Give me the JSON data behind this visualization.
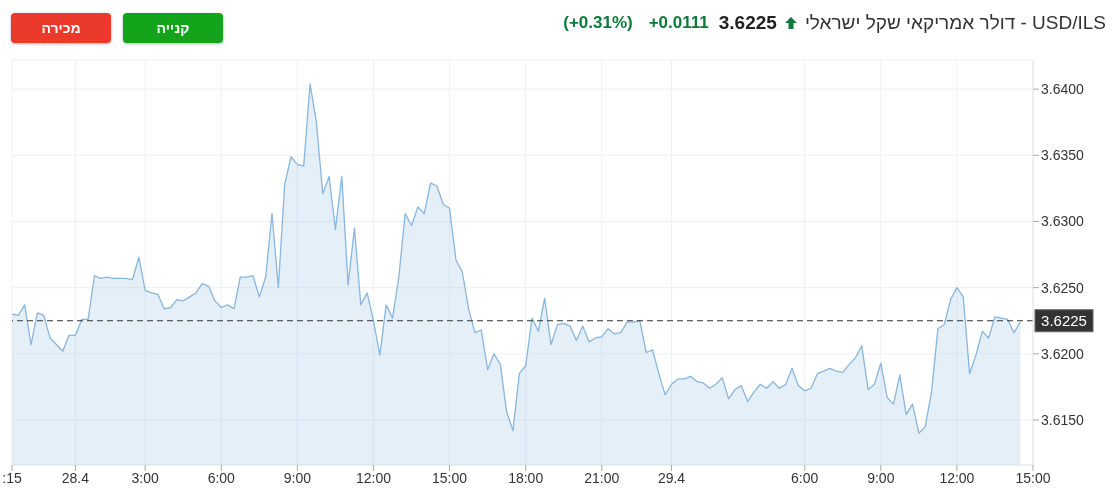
{
  "chart_data": {
    "type": "area",
    "title": "USD/ILS - דולר אמריקאי שקל ישראלי",
    "subtitle": "3.6225",
    "annotations": [
      "+0.0111",
      "(+0.31%)",
      "קנייה",
      "מכירה"
    ],
    "categories": [
      ":15",
      null,
      null,
      null,
      null,
      null,
      null,
      null,
      null,
      null,
      "28.4",
      null,
      null,
      null,
      null,
      null,
      null,
      null,
      null,
      null,
      null,
      "3:00",
      null,
      null,
      null,
      null,
      null,
      null,
      null,
      null,
      null,
      null,
      null,
      "6:00",
      null,
      null,
      null,
      null,
      null,
      null,
      null,
      null,
      null,
      null,
      null,
      "9:00",
      null,
      null,
      null,
      null,
      null,
      null,
      null,
      null,
      null,
      null,
      null,
      "12:00",
      null,
      null,
      null,
      null,
      null,
      null,
      null,
      null,
      null,
      null,
      null,
      "15:00",
      null,
      null,
      null,
      null,
      null,
      null,
      null,
      null,
      null,
      null,
      null,
      "18:00",
      null,
      null,
      null,
      null,
      null,
      null,
      null,
      null,
      null,
      null,
      null,
      "21:00",
      null,
      null,
      null,
      null,
      null,
      null,
      null,
      null,
      null,
      null,
      "29.4",
      null,
      null,
      null,
      null,
      null,
      null,
      null,
      null,
      null,
      null,
      null,
      null,
      null,
      null,
      null,
      null,
      null,
      null,
      null,
      null,
      "6:00",
      null,
      null,
      null,
      null,
      null,
      null,
      null,
      null,
      null,
      null,
      null,
      "9:00",
      null,
      null,
      null,
      null,
      null,
      null,
      null,
      null,
      null,
      null,
      null,
      "12:00",
      null,
      null,
      null,
      null,
      null,
      null,
      null,
      null,
      null,
      null,
      null,
      "15:00"
    ],
    "series": [
      {
        "color": "#88b6dd",
        "values": [
          3.623,
          3.6229,
          3.6237,
          3.6207,
          3.6231,
          3.6229,
          3.6212,
          3.6207,
          3.6202,
          3.6214,
          3.6214,
          3.6226,
          3.6226,
          3.6259,
          3.6257,
          3.6258,
          3.6257,
          3.6257,
          3.6257,
          3.6256,
          3.6273,
          3.6248,
          3.6246,
          3.6245,
          3.6234,
          3.6235,
          3.6241,
          3.624,
          3.6243,
          3.6246,
          3.6253,
          3.6251,
          3.624,
          3.6235,
          3.6237,
          3.6234,
          3.6258,
          3.6258,
          3.6259,
          3.6243,
          3.6258,
          3.6306,
          3.625,
          3.6328,
          3.6349,
          3.6343,
          3.6342,
          3.6404,
          3.6375,
          3.6321,
          3.6334,
          3.6294,
          3.6334,
          3.6252,
          3.6295,
          3.6237,
          3.6246,
          3.6225,
          3.6199,
          3.6237,
          3.6227,
          3.6258,
          3.6306,
          3.6297,
          3.6311,
          3.6306,
          3.6329,
          3.6327,
          3.6313,
          3.631,
          3.6271,
          3.6262,
          3.6234,
          3.6216,
          3.6218,
          3.6188,
          3.62,
          3.6192,
          3.6156,
          3.6142,
          3.6185,
          3.6191,
          3.6227,
          3.6217,
          3.6242,
          3.6207,
          3.6222,
          3.6223,
          3.6221,
          3.621,
          3.6221,
          3.6209,
          3.6212,
          3.6213,
          3.6219,
          3.6215,
          3.6216,
          3.6224,
          3.6224,
          3.6225,
          3.6201,
          3.6203,
          3.6185,
          3.6169,
          3.6177,
          3.6181,
          3.6181,
          3.6183,
          3.6179,
          3.6178,
          3.6174,
          3.6177,
          3.6182,
          3.6166,
          3.6173,
          3.6176,
          3.6164,
          3.6171,
          3.6177,
          3.6174,
          3.6179,
          3.6174,
          3.6177,
          3.6189,
          3.6176,
          3.6172,
          3.6174,
          3.6185,
          3.6187,
          3.6189,
          3.6187,
          3.6186,
          3.6192,
          3.6197,
          3.6206,
          3.6173,
          3.6177,
          3.6193,
          3.6167,
          3.6162,
          3.6184,
          3.6154,
          3.6162,
          3.614,
          3.6145,
          3.6171,
          3.6219,
          3.6222,
          3.6241,
          3.625,
          3.6243,
          3.6185,
          3.6199,
          3.6217,
          3.6212,
          3.6228,
          3.6227,
          3.6226,
          3.6216,
          3.6224,
          null,
          null
        ]
      }
    ],
    "ylim": [
      3.6116,
      3.6422
    ],
    "yticks": [
      {
        "value": 3.615,
        "label": "3.6150"
      },
      {
        "value": 3.62,
        "label": "3.6200"
      },
      {
        "value": 3.625,
        "label": "3.6250"
      },
      {
        "value": 3.63,
        "label": "3.6300"
      },
      {
        "value": 3.635,
        "label": "3.6350"
      },
      {
        "value": 3.64,
        "label": "3.6400"
      }
    ],
    "ref_lines": [
      {
        "axis": "y",
        "value": 3.6225,
        "label": "3.6225",
        "color": "#333333",
        "line_style": "dashed"
      }
    ],
    "grid": true,
    "marker": "none",
    "line_style": "solid"
  }
}
